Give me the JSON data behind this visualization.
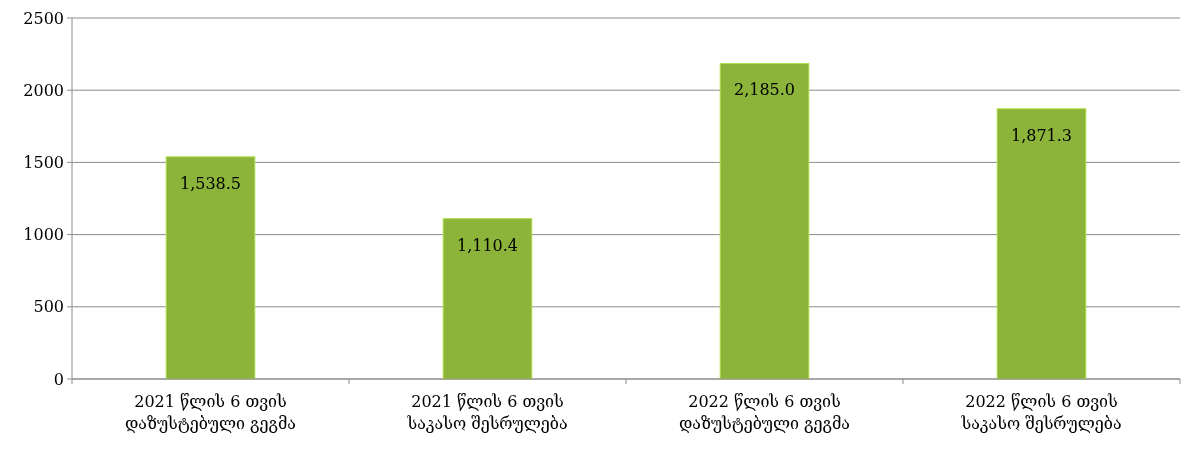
{
  "chart_data": {
    "type": "bar",
    "categories": [
      "2021 წლის 6 თვის დაზუსტებული გეგმა",
      "2021 წლის 6 თვის საკასო შესრულება",
      "2022 წლის 6 თვის დაზუსტებული გეგმა",
      "2022 წლის 6 თვის საკასო შესრულება"
    ],
    "values": [
      1538.5,
      1110.4,
      2185.0,
      1871.3
    ],
    "value_labels": [
      "1,538.5",
      "1,110.4",
      "2,185.0",
      "1,871.3"
    ],
    "color": "#8cb43a",
    "ylim": [
      0,
      2500
    ],
    "yticks": [
      0,
      500,
      1000,
      1500,
      2000,
      2500
    ],
    "grid": "y"
  }
}
